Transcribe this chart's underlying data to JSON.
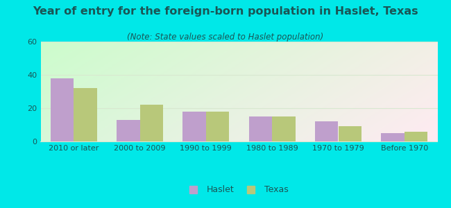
{
  "title": "Year of entry for the foreign-born population in Haslet, Texas",
  "subtitle": "(Note: State values scaled to Haslet population)",
  "categories": [
    "2010 or later",
    "2000 to 2009",
    "1990 to 1999",
    "1980 to 1989",
    "1970 to 1979",
    "Before 1970"
  ],
  "haslet_values": [
    38,
    13,
    18,
    15,
    12,
    5
  ],
  "texas_values": [
    32,
    22,
    18,
    15,
    9,
    6
  ],
  "haslet_color": "#bf9fcc",
  "texas_color": "#b8c87a",
  "background_outer": "#00e8e8",
  "ylim": [
    0,
    60
  ],
  "yticks": [
    0,
    20,
    40,
    60
  ],
  "bar_width": 0.35,
  "legend_labels": [
    "Haslet",
    "Texas"
  ],
  "title_fontsize": 11.5,
  "subtitle_fontsize": 8.5,
  "tick_fontsize": 8,
  "text_color": "#1a5555",
  "grid_color": "#d8e8d0"
}
